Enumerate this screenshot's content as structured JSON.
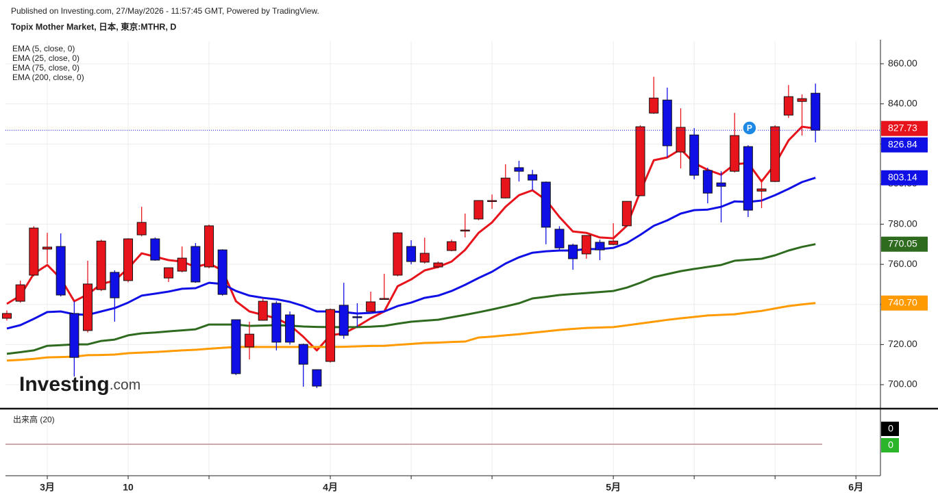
{
  "header": {
    "published": "Published on Investing.com, 27/May/2026 - 11:57:45 GMT, Powered by TradingView.",
    "title": "Topix Mother Market, 日本, 東京:MTHR, D"
  },
  "chart_data": {
    "type": "candlestick",
    "up_color": "#e8141c",
    "down_color": "#1010e6",
    "ylim": [
      688.4,
      871.3
    ],
    "yticks": [
      {
        "value": 700,
        "label": "700.00"
      },
      {
        "value": 720,
        "label": "720.00"
      },
      {
        "value": 740,
        "label": "740.00"
      },
      {
        "value": 760,
        "label": "760.00"
      },
      {
        "value": 780,
        "label": "780.00"
      },
      {
        "value": 800,
        "label": "800.00"
      },
      {
        "value": 820,
        "label": "820.00"
      },
      {
        "value": 840,
        "label": "840.00"
      },
      {
        "value": 860,
        "label": "860.00"
      }
    ],
    "xticks": [
      {
        "value": 3,
        "label": "3月"
      },
      {
        "value": 9,
        "label": "10"
      },
      {
        "value": 24,
        "label": "4月"
      },
      {
        "value": 45,
        "label": "5月"
      },
      {
        "value": 63,
        "label": "6月"
      }
    ],
    "xminor": [
      15,
      30,
      36,
      51,
      57
    ],
    "grid": true,
    "open": [
      733.1,
      741.6,
      754.6,
      767.6,
      768.9,
      735.5,
      727.0,
      747.4,
      756.0,
      751.9,
      774.7,
      772.7,
      753.2,
      756.6,
      768.9,
      758.7,
      767.2,
      732.4,
      718.8,
      732.1,
      740.6,
      734.8,
      720.1,
      707.5,
      711.6,
      739.6,
      733.9,
      736.5,
      742.8,
      754.6,
      768.9,
      761.1,
      758.7,
      766.9,
      776.9,
      782.6,
      791.6,
      793.1,
      808.2,
      804.7,
      801.0,
      777.5,
      769.6,
      765.2,
      771.0,
      769.9,
      779.2,
      794.2,
      835.4,
      841.9,
      816.0,
      824.5,
      806.8,
      800.6,
      806.4,
      818.7,
      796.5,
      801.3,
      834.4,
      841.2,
      845.3
    ],
    "high": [
      737,
      751.9,
      779,
      775.7,
      775.4,
      741.6,
      761.8,
      772.3,
      757,
      773,
      788.7,
      773.4,
      758.5,
      768.9,
      770.6,
      779.8,
      767.5,
      732.5,
      731.4,
      743,
      741.6,
      736.5,
      720.5,
      707.7,
      738,
      750.8,
      740.6,
      746.4,
      755.3,
      776,
      772,
      773.3,
      761.4,
      772.3,
      785.3,
      792,
      794.8,
      809.9,
      811.6,
      807.1,
      801.3,
      779,
      770.3,
      774.5,
      772.3,
      780.5,
      791.6,
      829.3,
      853.5,
      848.1,
      837.8,
      827.9,
      808.2,
      806.4,
      835.5,
      819.4,
      802.4,
      829.3,
      849.4,
      844.7,
      850.1
    ],
    "low": [
      732,
      740.9,
      754,
      760.4,
      744,
      704.1,
      726,
      746.7,
      731.4,
      751,
      774,
      761.8,
      751.2,
      756,
      750.8,
      758,
      744.4,
      704.8,
      712.6,
      732,
      717.1,
      720,
      699,
      698.3,
      711,
      722.9,
      728.7,
      736,
      742.5,
      754,
      760,
      760.4,
      758,
      766.5,
      773.4,
      782,
      787.7,
      792.9,
      801.3,
      796.9,
      770,
      767,
      757.3,
      762.8,
      762.1,
      769.5,
      779,
      794,
      835,
      813.3,
      807.8,
      802.4,
      790.4,
      780.9,
      805.8,
      783.6,
      788,
      801,
      833,
      824.2,
      820.8
    ],
    "close": [
      735.5,
      749.8,
      778.1,
      768.6,
      744.7,
      713.6,
      750.2,
      771.6,
      743.3,
      772.7,
      780.9,
      762.1,
      758.3,
      763.1,
      751.2,
      779.2,
      745.0,
      705.5,
      725.2,
      741.6,
      721.2,
      721.2,
      710.2,
      699.3,
      737.5,
      724.6,
      733.5,
      741.3,
      743.0,
      775.7,
      761.4,
      765.5,
      760.7,
      771.3,
      777.1,
      791.8,
      791.8,
      803.0,
      806.4,
      802.0,
      778.5,
      768.2,
      762.8,
      774.4,
      767.2,
      771.6,
      791.4,
      828.6,
      842.9,
      819.1,
      828.3,
      804.4,
      795.5,
      798.9,
      824.2,
      787.0,
      797.6,
      828.6,
      843.6,
      842.6,
      826.84
    ],
    "last_label": "826.84",
    "series": [
      {
        "name": "EMA (5, close, 0)",
        "color": "#e8141c",
        "last_label": "827.73",
        "values": [
          740.3,
          744.4,
          755.3,
          759.7,
          752.9,
          741.6,
          745.0,
          750.2,
          751.9,
          758.0,
          765.5,
          763.8,
          762.1,
          761.4,
          758.7,
          760.4,
          757.0,
          741.6,
          736.5,
          734.8,
          733.1,
          729.7,
          723.9,
          717.1,
          724.6,
          725.6,
          729.0,
          733.1,
          736.5,
          749.1,
          752.5,
          757.0,
          758.7,
          761.4,
          767.2,
          775.7,
          780.9,
          788.7,
          794.5,
          796.9,
          792.1,
          783.6,
          776.4,
          775.7,
          773.4,
          773.0,
          779.2,
          796.2,
          811.9,
          813.3,
          817.4,
          810.5,
          807.1,
          804.7,
          809.9,
          810.5,
          801.3,
          809.9,
          821.8,
          828.6,
          827.73
        ]
      },
      {
        "name": "EMA (25, close, 0)",
        "color": "#1010e6",
        "last_label": "803.14",
        "values": [
          728.0,
          729.7,
          732.8,
          736.2,
          736.5,
          735.1,
          734.8,
          736.5,
          738.2,
          740.9,
          744.4,
          745.4,
          746.4,
          747.8,
          748.1,
          750.8,
          750.2,
          746.7,
          744.4,
          743.3,
          742.6,
          741.3,
          739.2,
          736.5,
          736.5,
          736.2,
          735.5,
          735.8,
          736.5,
          739.2,
          740.9,
          743.3,
          744.4,
          746.7,
          749.8,
          753.2,
          756.3,
          760.4,
          763.5,
          765.8,
          766.5,
          766.9,
          766.9,
          767.6,
          767.6,
          768.2,
          770.6,
          774.7,
          779.2,
          781.9,
          785.3,
          787.0,
          787.3,
          788.7,
          791.4,
          791.1,
          791.8,
          794.5,
          797.6,
          801.0,
          803.14
        ]
      },
      {
        "name": "EMA (75, close, 0)",
        "color": "#2e6b1e",
        "last_label": "770.05",
        "values": [
          715.4,
          716.2,
          717.1,
          719.4,
          719.7,
          720.1,
          720.1,
          721.8,
          722.5,
          724.6,
          725.6,
          726.0,
          726.6,
          727.1,
          727.6,
          730.0,
          730.0,
          730.0,
          729.3,
          729.5,
          729.7,
          729.4,
          729.0,
          728.8,
          728.7,
          728.7,
          728.7,
          728.9,
          729.3,
          730.4,
          731.4,
          731.9,
          732.4,
          733.6,
          734.8,
          736.1,
          737.5,
          739.0,
          740.6,
          743.0,
          743.8,
          744.7,
          745.2,
          745.7,
          746.2,
          746.7,
          748.4,
          750.8,
          753.6,
          755.1,
          756.6,
          757.7,
          758.7,
          759.7,
          761.8,
          762.3,
          762.8,
          764.5,
          766.9,
          768.7,
          770.05
        ]
      },
      {
        "name": "EMA (200, close, 0)",
        "color": "#ff9a00",
        "last_label": "740.70",
        "values": [
          712.0,
          712.4,
          712.9,
          713.6,
          713.8,
          714.0,
          714.7,
          714.8,
          715.0,
          715.7,
          716.0,
          716.3,
          716.7,
          717.1,
          717.4,
          717.9,
          718.4,
          718.8,
          718.8,
          718.8,
          718.8,
          718.8,
          718.8,
          718.8,
          718.8,
          718.9,
          719.1,
          719.3,
          719.4,
          719.9,
          720.3,
          720.8,
          721.0,
          721.3,
          721.5,
          723.5,
          724.0,
          724.6,
          725.2,
          725.9,
          726.6,
          727.3,
          727.8,
          728.3,
          728.5,
          728.7,
          729.6,
          730.5,
          731.4,
          732.3,
          733.1,
          733.8,
          734.5,
          734.8,
          735.1,
          736.0,
          736.8,
          738.0,
          739.2,
          740.0,
          740.7
        ]
      }
    ],
    "badge": "P",
    "watermark": [
      "Investing",
      ".com"
    ],
    "volume": {
      "title": "出来高 (20)",
      "last": 0,
      "ma_last": 0
    }
  }
}
